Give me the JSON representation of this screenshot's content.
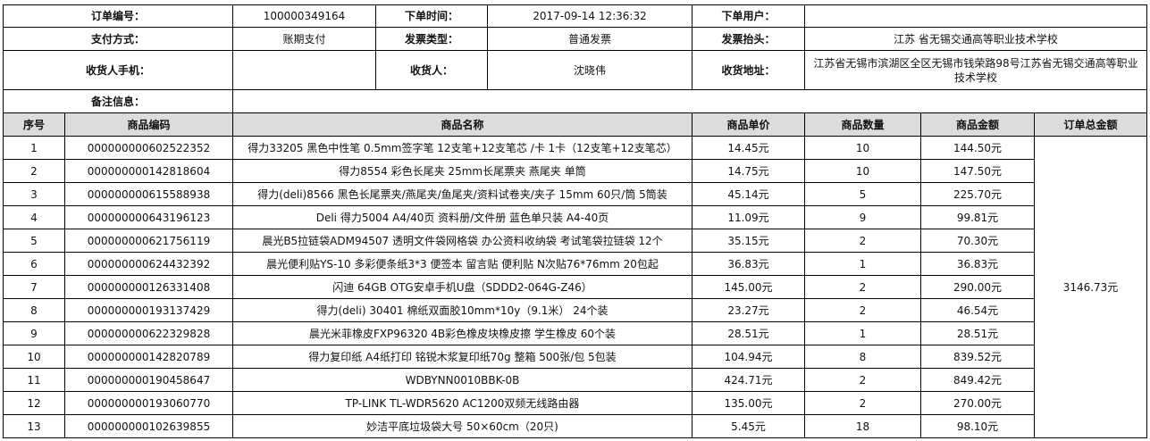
{
  "order": {
    "order_no_label": "订单编号：",
    "order_no": "100000349164",
    "order_time_label": "下单时间：",
    "order_time": "2017-09-14 12:36:32",
    "order_user_label": "下单用户：",
    "order_user": "",
    "pay_method_label": "支付方式：",
    "pay_method": "账期支付",
    "invoice_type_label": "发票类型：",
    "invoice_type": "普通发票",
    "invoice_title_label": "发票抬头：",
    "invoice_title": "江苏 省无锡交通高等职业技术学校",
    "phone_label": "收货人手机：",
    "phone": "",
    "receiver_label": "收货人：",
    "receiver": "沈晓伟",
    "address_label": "收货地址：",
    "address": "江苏省无锡市滨湖区全区无锡市钱荣路98号江苏省无锡交通高等职业技术学校",
    "remark_label": "备注信息：",
    "remark": ""
  },
  "table": {
    "headers": [
      "序号",
      "商品编码",
      "商品名称",
      "商品单价",
      "商品数量",
      "商品金额",
      "订单总金额"
    ],
    "total": "3146.73元",
    "rows": [
      [
        "1",
        "000000000602522352",
        "得力33205 黑色中性笔 0.5mm签字笔 12支笔+12支笔芯 /卡 1卡（12支笔+12支笔芯）",
        "14.45元",
        "10",
        "144.50元"
      ],
      [
        "2",
        "000000000142818604",
        "得力8554 彩色长尾夹 25mm长尾票夹 燕尾夹 单筒",
        "14.75元",
        "10",
        "147.50元"
      ],
      [
        "3",
        "000000000615588938",
        "得力(deli)8566 黑色长尾票夹/燕尾夹/鱼尾夹/资料试卷夹/夹子 15mm 60只/筒 5筒装",
        "45.14元",
        "5",
        "225.70元"
      ],
      [
        "4",
        "000000000643196123",
        "Deli 得力5004 A4/40页 资料册/文件册 蓝色单只装 A4-40页",
        "11.09元",
        "9",
        "99.81元"
      ],
      [
        "5",
        "000000000621756119",
        "晨光B5拉链袋ADM94507 透明文件袋网格袋 办公资料收纳袋 考试笔袋拉链袋 12个",
        "35.15元",
        "2",
        "70.30元"
      ],
      [
        "6",
        "000000000624432392",
        "晨光便利贴YS-10 多彩便条纸3*3 便签本 留言贴 便利贴 N次贴76*76mm 20包起",
        "36.83元",
        "1",
        "36.83元"
      ],
      [
        "7",
        "000000000126331408",
        "闪迪 64GB OTG安卓手机U盘（SDDD2-064G-Z46）",
        "145.00元",
        "2",
        "290.00元"
      ],
      [
        "8",
        "000000000193137429",
        "得力(deli) 30401 棉纸双面胶10mm*10y（9.1米） 24个装",
        "23.27元",
        "2",
        "46.54元"
      ],
      [
        "9",
        "000000000622329828",
        "晨光米菲橡皮FXP96320 4B彩色橡皮块橡皮擦 学生橡皮 60个装",
        "28.51元",
        "1",
        "28.51元"
      ],
      [
        "10",
        "000000000142820789",
        "得力复印纸 A4纸打印 铭锐木浆复印纸70g 整箱 500张/包 5包装",
        "104.94元",
        "8",
        "839.52元"
      ],
      [
        "11",
        "000000000190458647",
        "WDBYNN0010BBK-0B",
        "424.71元",
        "2",
        "849.42元"
      ],
      [
        "12",
        "000000000193060770",
        "TP-LINK TL-WDR5620 AC1200双频无线路由器",
        "135.00元",
        "2",
        "270.00元"
      ],
      [
        "13",
        "000000000102639855",
        "妙洁平底垃圾袋大号 50×60cm（20只)",
        "5.45元",
        "18",
        "98.10元"
      ]
    ]
  }
}
